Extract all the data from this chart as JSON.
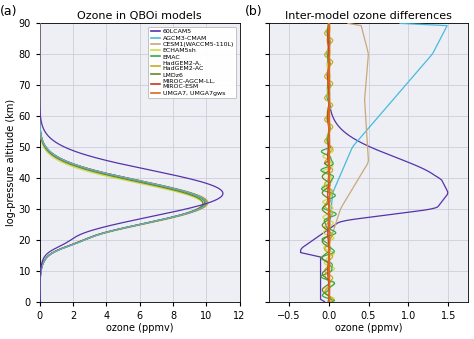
{
  "title_a": "Ozone in QBOi models",
  "title_b": "Inter-model ozone differences",
  "xlabel": "ozone (ppmv)",
  "ylabel": "log-pressure altitude (km)",
  "label_a": "(a)",
  "label_b": "(b)",
  "ylim": [
    0,
    90
  ],
  "xlim_a": [
    0,
    12
  ],
  "xlim_b": [
    -0.75,
    1.75
  ],
  "xticks_a": [
    0,
    2,
    4,
    6,
    8,
    10,
    12
  ],
  "xticks_b": [
    -0.5,
    0.0,
    0.5,
    1.0,
    1.5
  ],
  "yticks": [
    0,
    10,
    20,
    30,
    40,
    50,
    60,
    70,
    80,
    90
  ],
  "bg_color": "#eeeef5",
  "grid_color": "#c8c8d8",
  "legend_entries": [
    "60LCAM5",
    "AGCM3-CMAM",
    "CESM1(WACCM5-110L)",
    "ECHAM5sh",
    "EMAC",
    "HadGEM2-A,\nHadGEM2-AC",
    "LMDz6",
    "MIROC-AGCM-LL,\nMIROC-ESM",
    "UMGA7, UMGA7gws"
  ],
  "line_colors": [
    "#5533aa",
    "#44bbdd",
    "#c8a878",
    "#ccdd44",
    "#33aa44",
    "#ccaa22",
    "#668822",
    "#cc3322",
    "#dd6622"
  ]
}
